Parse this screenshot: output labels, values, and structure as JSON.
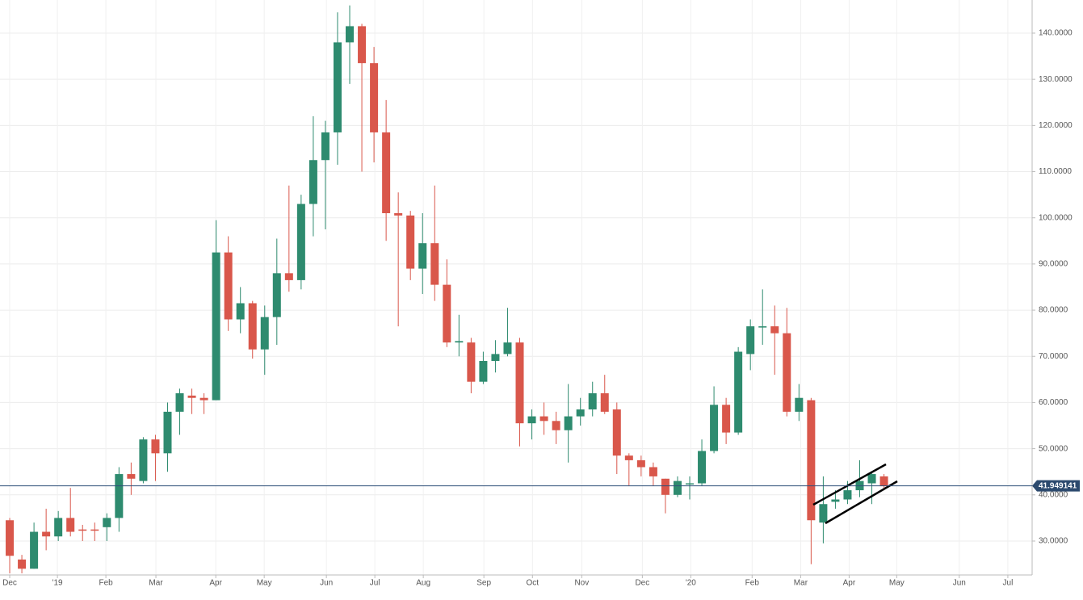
{
  "chart_data": {
    "type": "candlestick",
    "xlim": [
      -0.8,
      84.2
    ],
    "xticks": [
      {
        "value": 0,
        "label": "Dec"
      },
      {
        "value": 3.93,
        "label": "'19"
      },
      {
        "value": 7.92,
        "label": "Feb"
      },
      {
        "value": 12.04,
        "label": "Mar"
      },
      {
        "value": 16.97,
        "label": "Apr"
      },
      {
        "value": 20.96,
        "label": "May"
      },
      {
        "value": 26.08,
        "label": "Jun"
      },
      {
        "value": 30.07,
        "label": "Jul"
      },
      {
        "value": 34.06,
        "label": "Aug"
      },
      {
        "value": 39.05,
        "label": "Sep"
      },
      {
        "value": 43.05,
        "label": "Oct"
      },
      {
        "value": 47.11,
        "label": "Nov"
      },
      {
        "value": 52.1,
        "label": "Dec"
      },
      {
        "value": 56.09,
        "label": "'20"
      },
      {
        "value": 61.14,
        "label": "Feb"
      },
      {
        "value": 65.14,
        "label": "Mar"
      },
      {
        "value": 69.13,
        "label": "Apr"
      },
      {
        "value": 73.05,
        "label": "May"
      },
      {
        "value": 78.2,
        "label": "Jun"
      },
      {
        "value": 82.2,
        "label": "Jul"
      }
    ],
    "ylim": [
      22.65,
      147.17
    ],
    "yticks": [
      {
        "value": 30,
        "label": "30.0000"
      },
      {
        "value": 40,
        "label": "40.0000"
      },
      {
        "value": 50,
        "label": "50.0000"
      },
      {
        "value": 60,
        "label": "60.0000"
      },
      {
        "value": 70,
        "label": "70.0000"
      },
      {
        "value": 80,
        "label": "80.0000"
      },
      {
        "value": 90,
        "label": "90.0000"
      },
      {
        "value": 100,
        "label": "100.0000"
      },
      {
        "value": 110,
        "label": "110.0000"
      },
      {
        "value": 120,
        "label": "120.0000"
      },
      {
        "value": 130,
        "label": "130.0000"
      },
      {
        "value": 140,
        "label": "140.0000"
      }
    ],
    "grid": true,
    "up_color": "#2e8b6f",
    "down_color": "#d9574b",
    "last_price": 41.949141,
    "open": [
      34.5,
      26,
      24,
      32,
      31,
      35,
      32.5,
      32.5,
      33,
      35,
      44.5,
      43,
      52,
      49,
      58,
      61.5,
      61,
      60.5,
      92.5,
      78,
      81.5,
      71.5,
      78.5,
      88,
      86.5,
      103,
      112.5,
      118.5,
      138,
      141.5,
      133.5,
      118.5,
      101,
      100.5,
      89,
      94.5,
      85.5,
      73,
      73,
      64.5,
      69,
      70.5,
      73,
      55.5,
      57,
      56,
      54,
      57,
      58.5,
      62,
      58.5,
      48.5,
      47.5,
      46,
      43.5,
      40,
      42.5,
      42.5,
      49.5,
      59.5,
      53.5,
      70.5,
      76.5,
      76.5,
      75,
      58,
      60.5,
      34,
      38.5,
      39,
      41,
      42.5,
      44
    ],
    "high": [
      35,
      27,
      34,
      37,
      36.5,
      41.5,
      33.5,
      34,
      36,
      46,
      47,
      52.5,
      53,
      60,
      63,
      63,
      62,
      99.5,
      96,
      85,
      82,
      81,
      95.5,
      107,
      105,
      122,
      121,
      144.5,
      146,
      142,
      137,
      125.5,
      105.5,
      101.5,
      101,
      107,
      91,
      79,
      74,
      71,
      73.5,
      80.5,
      74,
      58.5,
      60,
      58,
      64,
      61,
      64.5,
      66,
      60,
      49,
      48.5,
      47,
      43.5,
      44,
      44,
      52,
      63.5,
      61,
      72,
      78,
      84.5,
      81,
      80.5,
      64,
      61,
      44,
      41,
      43,
      47.5,
      45,
      44.5
    ],
    "low": [
      23,
      23,
      24,
      28,
      30,
      31,
      30,
      30,
      30,
      32,
      40,
      42.5,
      43,
      45,
      53,
      57.5,
      57.5,
      60.5,
      75.5,
      75,
      69.5,
      66,
      72.5,
      84,
      84.5,
      96,
      97.5,
      111.5,
      129,
      110,
      112,
      95,
      76.5,
      86.5,
      83.5,
      82,
      72,
      70,
      62,
      64,
      66.5,
      70,
      50.5,
      52,
      53,
      51,
      47,
      55,
      57,
      57.5,
      44.5,
      42,
      44,
      42,
      36,
      39.5,
      39,
      42,
      49,
      51,
      53,
      67,
      72.5,
      66,
      57,
      56,
      25,
      29.5,
      37,
      38,
      39.5,
      38,
      41
    ],
    "close": [
      26.8,
      24,
      32,
      31,
      35,
      32,
      32.3,
      32.3,
      35,
      44.5,
      43.5,
      52,
      49,
      58,
      62,
      61,
      60.5,
      92.5,
      78,
      81.5,
      71.5,
      78.5,
      88,
      86.5,
      103,
      112.5,
      118.5,
      138,
      141.5,
      133.5,
      118.5,
      101,
      100.5,
      89,
      94.5,
      85.5,
      73,
      73.3,
      64.5,
      69,
      70.5,
      73,
      55.5,
      57,
      56,
      54,
      57,
      58.5,
      62,
      58,
      48.5,
      47.5,
      46,
      44,
      40,
      43,
      42.5,
      49.5,
      59.5,
      53.5,
      71,
      76.5,
      76.5,
      75,
      58,
      61,
      34.5,
      38,
      39,
      41,
      43,
      44.5,
      41.9
    ]
  }
}
